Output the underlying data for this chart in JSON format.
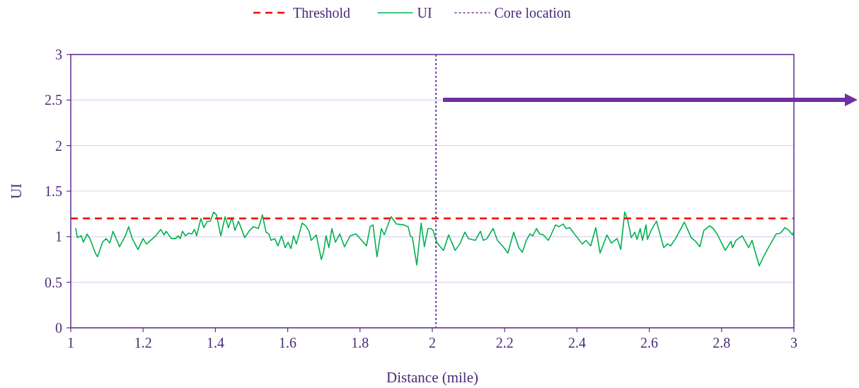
{
  "chart_data": {
    "type": "line",
    "xlabel": "Distance (mile)",
    "ylabel": "UI",
    "xlim": [
      1,
      3
    ],
    "xticks": [
      1,
      1.2,
      1.4,
      1.6,
      1.8,
      2,
      2.2,
      2.4,
      2.6,
      2.8,
      3
    ],
    "ylim": [
      0,
      3
    ],
    "yticks": [
      0,
      0.5,
      1,
      1.5,
      2,
      2.5,
      3
    ],
    "grid": "y",
    "legend": "top",
    "line_style": "solid",
    "marker": "none",
    "series": [
      {
        "name": "UI",
        "color": "#00b050",
        "x": [
          1.014,
          1.018,
          1.029,
          1.035,
          1.045,
          1.053,
          1.068,
          1.074,
          1.088,
          1.098,
          1.108,
          1.117,
          1.135,
          1.151,
          1.16,
          1.17,
          1.186,
          1.2,
          1.209,
          1.215,
          1.235,
          1.249,
          1.258,
          1.264,
          1.278,
          1.29,
          1.297,
          1.303,
          1.309,
          1.317,
          1.327,
          1.335,
          1.342,
          1.348,
          1.36,
          1.368,
          1.378,
          1.386,
          1.395,
          1.403,
          1.415,
          1.427,
          1.436,
          1.446,
          1.454,
          1.464,
          1.481,
          1.495,
          1.505,
          1.519,
          1.53,
          1.54,
          1.548,
          1.554,
          1.564,
          1.573,
          1.583,
          1.593,
          1.601,
          1.609,
          1.616,
          1.624,
          1.64,
          1.65,
          1.659,
          1.665,
          1.679,
          1.693,
          1.699,
          1.706,
          1.714,
          1.722,
          1.732,
          1.744,
          1.757,
          1.773,
          1.789,
          1.798,
          1.818,
          1.828,
          1.836,
          1.847,
          1.859,
          1.867,
          1.881,
          1.886,
          1.9,
          1.92,
          1.933,
          1.939,
          1.945,
          1.957,
          1.969,
          1.978,
          1.988,
          1.996,
          2.002,
          2.012,
          2.022,
          2.031,
          2.045,
          2.063,
          2.076,
          2.09,
          2.1,
          2.119,
          2.133,
          2.141,
          2.151,
          2.168,
          2.18,
          2.196,
          2.209,
          2.225,
          2.239,
          2.249,
          2.26,
          2.27,
          2.278,
          2.288,
          2.297,
          2.307,
          2.321,
          2.341,
          2.35,
          2.362,
          2.37,
          2.38,
          2.395,
          2.415,
          2.425,
          2.438,
          2.452,
          2.464,
          2.483,
          2.495,
          2.511,
          2.521,
          2.532,
          2.54,
          2.55,
          2.56,
          2.566,
          2.575,
          2.581,
          2.591,
          2.595,
          2.605,
          2.62,
          2.64,
          2.65,
          2.659,
          2.673,
          2.697,
          2.716,
          2.728,
          2.74,
          2.751,
          2.767,
          2.777,
          2.789,
          2.81,
          2.826,
          2.83,
          2.84,
          2.857,
          2.875,
          2.884,
          2.904,
          2.916,
          2.928,
          2.951,
          2.963,
          2.975,
          2.986,
          2.996,
          3.0
        ],
        "values": [
          1.09,
          0.99,
          1.01,
          0.94,
          1.03,
          0.98,
          0.82,
          0.78,
          0.94,
          0.98,
          0.93,
          1.06,
          0.89,
          1.01,
          1.11,
          0.98,
          0.86,
          0.98,
          0.92,
          0.94,
          1.01,
          1.08,
          1.02,
          1.06,
          0.98,
          0.98,
          1.01,
          0.98,
          1.06,
          1.01,
          1.04,
          1.03,
          1.08,
          1.01,
          1.2,
          1.1,
          1.17,
          1.17,
          1.27,
          1.24,
          1.01,
          1.22,
          1.1,
          1.21,
          1.07,
          1.17,
          0.99,
          1.07,
          1.11,
          1.09,
          1.24,
          1.05,
          1.03,
          0.96,
          0.98,
          0.9,
          1.01,
          0.88,
          0.94,
          0.87,
          1.01,
          0.92,
          1.15,
          1.12,
          1.06,
          0.96,
          1.02,
          0.75,
          0.83,
          1.01,
          0.88,
          1.09,
          0.94,
          1.03,
          0.89,
          1.01,
          1.03,
          0.99,
          0.9,
          1.11,
          1.13,
          0.78,
          1.09,
          1.02,
          1.17,
          1.22,
          1.14,
          1.13,
          1.11,
          1.01,
          0.99,
          0.69,
          1.15,
          0.89,
          1.09,
          1.09,
          1.07,
          0.94,
          0.89,
          0.85,
          1.02,
          0.85,
          0.92,
          1.05,
          0.98,
          0.96,
          1.06,
          0.96,
          0.98,
          1.09,
          0.96,
          0.89,
          0.82,
          1.05,
          0.88,
          0.83,
          0.96,
          1.03,
          1.01,
          1.09,
          1.03,
          1.02,
          0.96,
          1.13,
          1.11,
          1.14,
          1.09,
          1.1,
          1.02,
          0.92,
          0.96,
          0.9,
          1.1,
          0.82,
          1.02,
          0.93,
          0.98,
          0.86,
          1.27,
          1.19,
          0.99,
          1.05,
          0.97,
          1.09,
          0.96,
          1.13,
          0.97,
          1.07,
          1.17,
          0.88,
          0.92,
          0.9,
          0.98,
          1.16,
          0.99,
          0.95,
          0.89,
          1.07,
          1.12,
          1.09,
          1.02,
          0.85,
          0.95,
          0.88,
          0.96,
          1.01,
          0.88,
          0.96,
          0.68,
          0.78,
          0.87,
          1.03,
          1.04,
          1.1,
          1.07,
          1.02,
          1.06
        ]
      }
    ],
    "ref_lines": [
      {
        "axis": "y",
        "value": 1.2,
        "label": "Threshold",
        "color": "#ff0000",
        "line_style": "dashed"
      },
      {
        "axis": "x",
        "value": 2.01,
        "label": "Core location",
        "color": "#7030a0",
        "line_style": "dotted"
      }
    ]
  }
}
